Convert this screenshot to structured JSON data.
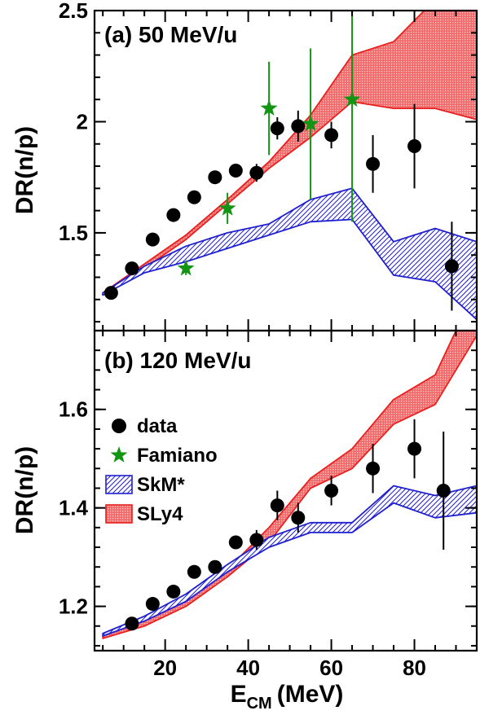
{
  "colors": {
    "skm": "#1f1fd0",
    "sly4": "#e8201e",
    "famiano": "#139413",
    "data": "#000000"
  },
  "xlabel": "E",
  "xlabel_sub": "CM",
  "xlabel_unit": "(MeV)",
  "chart_data": [
    {
      "type": "line",
      "title": "(a) 50 MeV/u",
      "ylabel": "DR(n/p)",
      "xlim": [
        3,
        95
      ],
      "ylim": [
        1.06,
        2.5
      ],
      "xticks": [
        20,
        40,
        60,
        80
      ],
      "xtick_labels": [
        "20",
        "40",
        "60",
        "80"
      ],
      "yticks": [
        1.5,
        2,
        2.5
      ],
      "ytick_labels": [
        "1.5",
        "2",
        "2.5"
      ],
      "data": {
        "x": [
          7,
          12,
          17,
          22,
          27,
          32,
          37,
          42,
          47,
          52,
          60,
          70,
          80,
          89
        ],
        "y": [
          1.23,
          1.34,
          1.47,
          1.58,
          1.66,
          1.75,
          1.78,
          1.77,
          1.97,
          1.98,
          1.94,
          1.81,
          1.89,
          1.35
        ],
        "err": [
          0.02,
          0.02,
          0.02,
          0.02,
          0.02,
          0.02,
          0.03,
          0.04,
          0.05,
          0.07,
          0.06,
          0.13,
          0.19,
          0.2
        ]
      },
      "famiano": {
        "x": [
          25,
          35,
          45,
          55,
          65
        ],
        "y": [
          1.34,
          1.61,
          2.06,
          1.99,
          2.1
        ],
        "err": [
          0.03,
          0.07,
          0.21,
          0.34,
          0.55
        ]
      },
      "skm_band": {
        "x": [
          5,
          15,
          25,
          35,
          45,
          55,
          65,
          75,
          85,
          95
        ],
        "low": [
          1.22,
          1.32,
          1.37,
          1.43,
          1.49,
          1.55,
          1.56,
          1.31,
          1.28,
          1.11
        ],
        "high": [
          1.23,
          1.35,
          1.44,
          1.5,
          1.54,
          1.65,
          1.7,
          1.46,
          1.52,
          1.46
        ]
      },
      "sly4_band": {
        "x": [
          5,
          15,
          25,
          35,
          45,
          55,
          65,
          75,
          85,
          95
        ],
        "low": [
          1.22,
          1.34,
          1.47,
          1.63,
          1.79,
          1.93,
          2.09,
          2.06,
          2.06,
          2.01
        ],
        "high": [
          1.23,
          1.36,
          1.49,
          1.65,
          1.82,
          2.03,
          2.3,
          2.36,
          2.55,
          2.65
        ]
      }
    },
    {
      "type": "line",
      "title": "(b) 120 MeV/u",
      "ylabel": "DR(n/p)",
      "xlabel": "E_CM (MeV)",
      "xlim": [
        3,
        95
      ],
      "ylim": [
        1.11,
        1.76
      ],
      "xticks": [
        20,
        40,
        60,
        80
      ],
      "xtick_labels": [
        "20",
        "40",
        "60",
        "80"
      ],
      "yticks": [
        1.2,
        1.4,
        1.6
      ],
      "ytick_labels": [
        "1.2",
        "1.4",
        "1.6"
      ],
      "data": {
        "x": [
          12,
          17,
          22,
          27,
          32,
          37,
          42,
          47,
          52,
          60,
          70,
          80,
          87
        ],
        "y": [
          1.165,
          1.205,
          1.23,
          1.27,
          1.28,
          1.33,
          1.335,
          1.405,
          1.38,
          1.435,
          1.48,
          1.52,
          1.435
        ],
        "err": [
          0.01,
          0.01,
          0.01,
          0.01,
          0.01,
          0.01,
          0.02,
          0.03,
          0.03,
          0.03,
          0.05,
          0.06,
          0.12
        ]
      },
      "skm_band": {
        "x": [
          5,
          15,
          25,
          35,
          45,
          55,
          65,
          75,
          85,
          95
        ],
        "low": [
          1.14,
          1.17,
          1.21,
          1.27,
          1.32,
          1.35,
          1.35,
          1.41,
          1.38,
          1.39
        ],
        "high": [
          1.145,
          1.18,
          1.225,
          1.285,
          1.34,
          1.37,
          1.37,
          1.445,
          1.425,
          1.445
        ]
      },
      "sly4_band": {
        "x": [
          5,
          15,
          25,
          35,
          45,
          55,
          65,
          75,
          85,
          95
        ],
        "low": [
          1.135,
          1.16,
          1.2,
          1.26,
          1.33,
          1.44,
          1.48,
          1.57,
          1.61,
          1.75
        ],
        "high": [
          1.14,
          1.175,
          1.22,
          1.275,
          1.36,
          1.46,
          1.52,
          1.62,
          1.67,
          1.85
        ]
      },
      "legend": {
        "placement": "left",
        "entries": [
          {
            "key": "data",
            "label": "data"
          },
          {
            "key": "famiano",
            "label": "Famiano"
          },
          {
            "key": "skm",
            "label": "SkM*"
          },
          {
            "key": "sly4",
            "label": "SLy4"
          }
        ]
      }
    }
  ]
}
